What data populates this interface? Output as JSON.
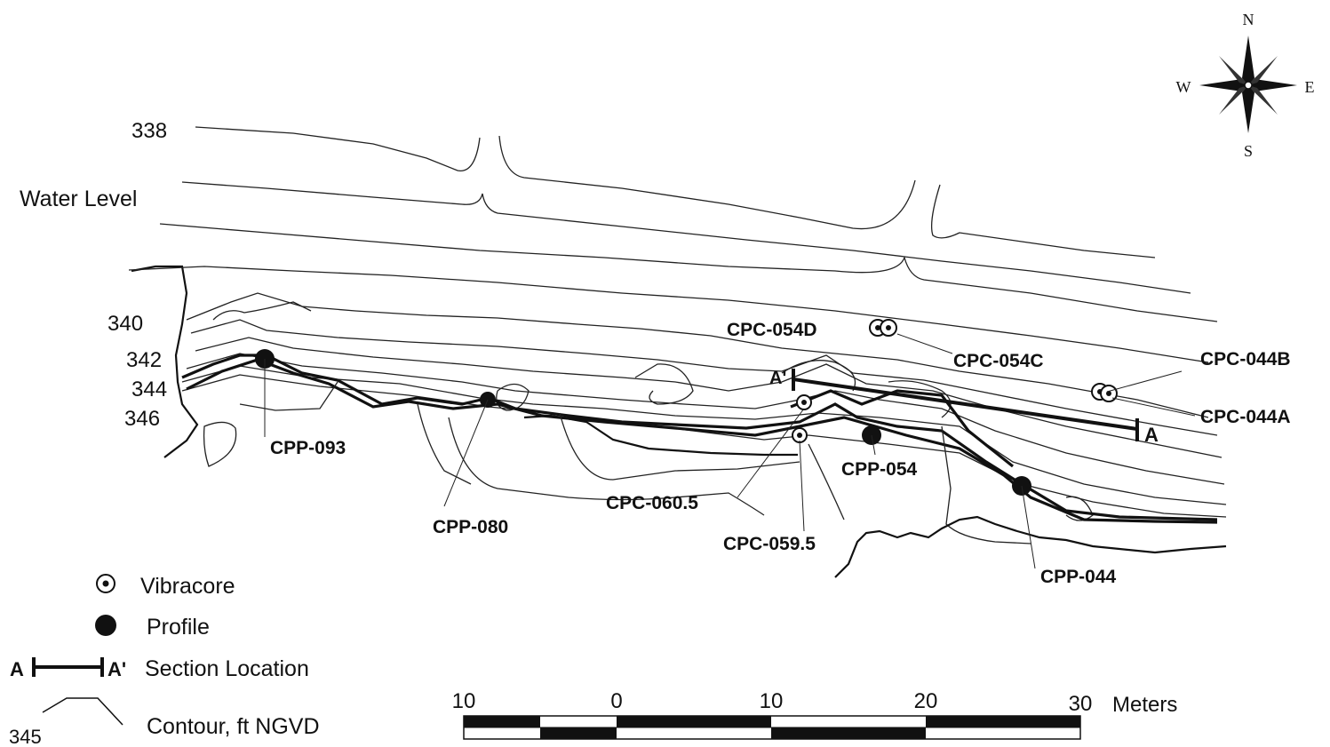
{
  "compass": {
    "n": "N",
    "s": "S",
    "e": "E",
    "w": "W"
  },
  "map": {
    "water_level_label": "Water Level",
    "contour_labels": [
      "338",
      "340",
      "342",
      "344",
      "346"
    ],
    "section": {
      "start": "A",
      "end": "A'"
    }
  },
  "stations": {
    "cpc054d": "CPC-054D",
    "cpc054c": "CPC-054C",
    "cpc044b": "CPC-044B",
    "cpc044a": "CPC-044A",
    "cpp093": "CPP-093",
    "cpp080": "CPP-080",
    "cpc0605": "CPC-060.5",
    "cpp054": "CPP-054",
    "cpc0595": "CPC-059.5",
    "cpp044": "CPP-044"
  },
  "legend": {
    "vibracore": "Vibracore",
    "profile": "Profile",
    "section_a": "A",
    "section_a_prime": "A'",
    "section": "Section Location",
    "contour_value": "345",
    "contour": "Contour, ft NGVD"
  },
  "scalebar": {
    "ticks": [
      "10",
      "0",
      "10",
      "20",
      "30"
    ],
    "unit": "Meters"
  }
}
